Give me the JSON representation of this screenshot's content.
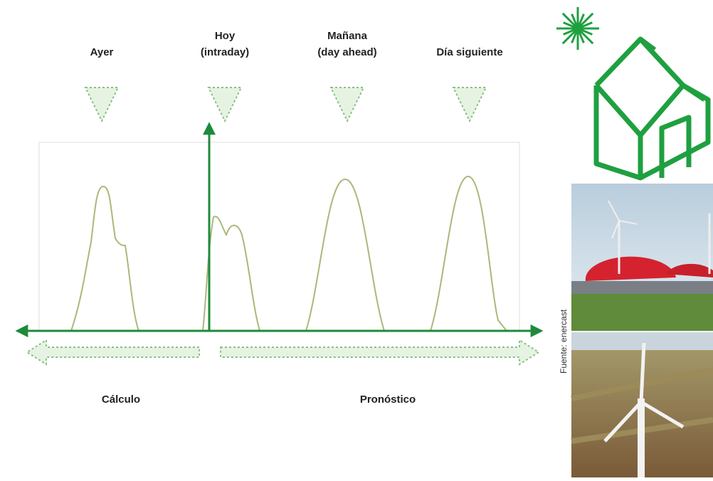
{
  "columns": [
    {
      "lines": [
        "Ayer"
      ]
    },
    {
      "lines": [
        "Hoy",
        "(intraday)"
      ]
    },
    {
      "lines": [
        "Mañana",
        "(day ahead)"
      ]
    },
    {
      "lines": [
        "Día siguiente"
      ]
    }
  ],
  "ranges": {
    "past": "Cálculo",
    "future": "Pronóstico"
  },
  "source": "Fuente: enercast"
}
